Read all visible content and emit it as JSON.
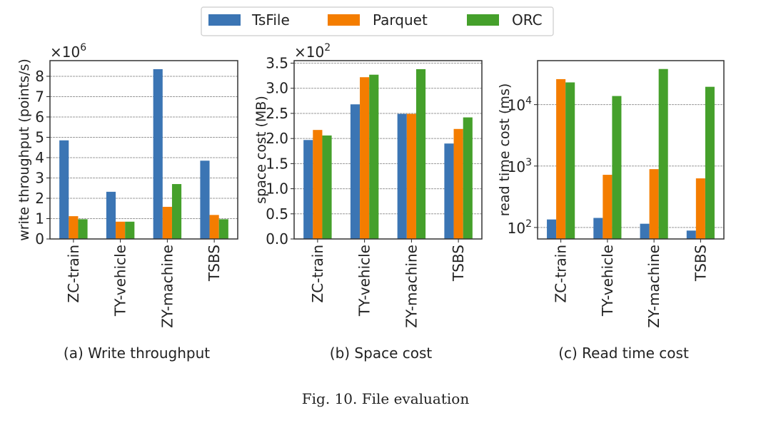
{
  "legend": {
    "placement": "top-center",
    "entries": [
      {
        "name": "TsFile",
        "color": "#3b75b4"
      },
      {
        "name": "Parquet",
        "color": "#f47d00"
      },
      {
        "name": "ORC",
        "color": "#45a02b"
      }
    ]
  },
  "figure_caption": "Fig. 10.  File evaluation",
  "chart_data": [
    {
      "type": "bar",
      "caption": "(a) Write throughput",
      "ylabel": "write throughput (points/s)",
      "multiplier_label": "×10",
      "multiplier_exp": "6",
      "categories": [
        "ZC-train",
        "TY-vehicle",
        "ZY-machine",
        "TSBS"
      ],
      "yscale": "linear",
      "ylim": [
        0,
        8.77
      ],
      "yticks": [
        0,
        1,
        2,
        3,
        4,
        5,
        6,
        7,
        8
      ],
      "ytick_labels": [
        "0",
        "1",
        "2",
        "3",
        "4",
        "5",
        "6",
        "7",
        "8"
      ],
      "grid": true,
      "series": [
        {
          "name": "TsFile",
          "values": [
            4.85,
            2.32,
            8.35,
            3.85
          ]
        },
        {
          "name": "Parquet",
          "values": [
            1.12,
            0.85,
            1.58,
            1.18
          ]
        },
        {
          "name": "ORC",
          "values": [
            0.97,
            0.85,
            2.7,
            0.97
          ]
        }
      ]
    },
    {
      "type": "bar",
      "caption": "(b) Space cost",
      "ylabel": "space cost (MB)",
      "multiplier_label": "×10",
      "multiplier_exp": "2",
      "categories": [
        "ZC-train",
        "TY-vehicle",
        "ZY-machine",
        "TSBS"
      ],
      "yscale": "linear",
      "ylim": [
        0,
        3.55
      ],
      "yticks": [
        0,
        0.5,
        1,
        1.5,
        2,
        2.5,
        3,
        3.5
      ],
      "ytick_labels": [
        "0.0",
        "0.5",
        "1.0",
        "1.5",
        "2.0",
        "2.5",
        "3.0",
        "3.5"
      ],
      "grid": true,
      "series": [
        {
          "name": "TsFile",
          "values": [
            1.97,
            2.68,
            2.49,
            1.9
          ]
        },
        {
          "name": "Parquet",
          "values": [
            2.17,
            3.22,
            2.49,
            2.19
          ]
        },
        {
          "name": "ORC",
          "values": [
            2.06,
            3.27,
            3.38,
            2.42
          ]
        }
      ]
    },
    {
      "type": "bar",
      "caption": "(c) Read time cost",
      "ylabel": "read time cost (ms)",
      "categories": [
        "ZC-train",
        "TY-vehicle",
        "ZY-machine",
        "TSBS"
      ],
      "yscale": "log",
      "ylim": [
        65,
        52000
      ],
      "yticks": [
        100,
        1000,
        10000
      ],
      "ytick_labels": [
        "10^2",
        "10^3",
        "10^4"
      ],
      "grid": true,
      "series": [
        {
          "name": "TsFile",
          "values": [
            135,
            143,
            115,
            89
          ]
        },
        {
          "name": "Parquet",
          "values": [
            26000,
            720,
            890,
            630
          ]
        },
        {
          "name": "ORC",
          "values": [
            23000,
            13800,
            38000,
            19500
          ]
        }
      ]
    }
  ]
}
